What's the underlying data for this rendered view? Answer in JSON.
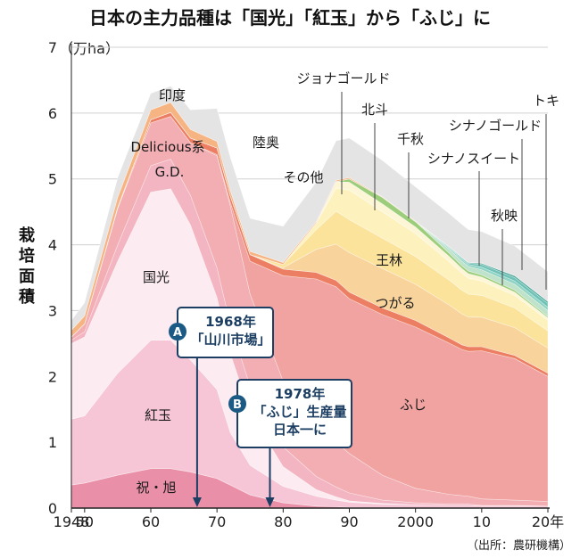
{
  "chart_data": {
    "type": "area",
    "title": "日本の主力品種は「国光」「紅玉」から「ふじ」に",
    "ylabel": "栽培面積",
    "yunit": "（万ha）",
    "source": "（出所：農研機構）",
    "ylim": [
      0,
      7
    ],
    "y_ticks": [
      0,
      1,
      2,
      3,
      4,
      5,
      6,
      7
    ],
    "x_ticks": [
      1948,
      1950,
      1960,
      1970,
      1980,
      1990,
      2000,
      2010,
      2020
    ],
    "x_tick_labels": [
      "1948",
      "50",
      "60",
      "70",
      "80",
      "90",
      "2000",
      "10",
      "20年"
    ],
    "x": [
      1948,
      1950,
      1955,
      1960,
      1963,
      1966,
      1970,
      1972,
      1975,
      1980,
      1985,
      1988,
      1990,
      1995,
      2000,
      2005,
      2007,
      2008,
      2010,
      2015,
      2020
    ],
    "series": [
      {
        "name": "祝・旭",
        "color": "#ea8fa8",
        "values": [
          0.35,
          0.38,
          0.5,
          0.6,
          0.6,
          0.55,
          0.45,
          0.35,
          0.2,
          0.08,
          0.03,
          0.02,
          0.01,
          0,
          0,
          0,
          0,
          0,
          0,
          0,
          0
        ]
      },
      {
        "name": "紅玉",
        "color": "#f6c6d6",
        "values": [
          1.0,
          1.02,
          1.55,
          1.95,
          1.95,
          1.7,
          1.35,
          0.8,
          0.45,
          0.25,
          0.15,
          0.1,
          0.08,
          0.06,
          0.05,
          0.04,
          0.04,
          0.04,
          0.03,
          0.03,
          0.03
        ]
      },
      {
        "name": "国光",
        "color": "#fcebf0",
        "values": [
          1.15,
          1.2,
          1.7,
          2.25,
          2.3,
          2.05,
          1.4,
          1.2,
          0.8,
          0.3,
          0.1,
          0.05,
          0.02,
          0.01,
          0,
          0,
          0,
          0,
          0,
          0,
          0
        ]
      },
      {
        "name": "G.D.",
        "color": "#f3b5c2",
        "values": [
          0.05,
          0.08,
          0.25,
          0.4,
          0.45,
          0.45,
          0.45,
          0.45,
          0.4,
          0.3,
          0.2,
          0.15,
          0.12,
          0.05,
          0.03,
          0.02,
          0.02,
          0.02,
          0.01,
          0.01,
          0
        ]
      },
      {
        "name": "Delicious系",
        "color": "#f2aeb2",
        "values": [
          0.05,
          0.12,
          0.55,
          0.65,
          0.65,
          0.8,
          1.7,
          1.8,
          1.4,
          1.0,
          0.8,
          0.68,
          0.6,
          0.38,
          0.22,
          0.15,
          0.13,
          0.12,
          0.1,
          0.08,
          0.07
        ]
      },
      {
        "name": "ふじ",
        "color": "#f0a3a0",
        "values": [
          0,
          0,
          0,
          0,
          0,
          0,
          0.02,
          0.05,
          0.5,
          1.6,
          2.2,
          2.36,
          2.35,
          2.44,
          2.45,
          2.3,
          2.22,
          2.2,
          2.25,
          2.15,
          1.9
        ]
      },
      {
        "name": "陸奥",
        "color": "#ec7f63",
        "values": [
          0,
          0,
          0.02,
          0.05,
          0.06,
          0.07,
          0.1,
          0.1,
          0.1,
          0.1,
          0.1,
          0.1,
          0.1,
          0.1,
          0.1,
          0.08,
          0.07,
          0.07,
          0.06,
          0.05,
          0.05
        ]
      },
      {
        "name": "つがる",
        "color": "#f8d39c",
        "values": [
          0,
          0,
          0,
          0,
          0,
          0,
          0,
          0,
          0,
          0.02,
          0.35,
          0.55,
          0.6,
          0.6,
          0.55,
          0.5,
          0.47,
          0.45,
          0.45,
          0.42,
          0.38
        ]
      },
      {
        "name": "王林",
        "color": "#fbe39b",
        "values": [
          0,
          0,
          0,
          0,
          0,
          0,
          0,
          0,
          0,
          0.05,
          0.3,
          0.5,
          0.5,
          0.46,
          0.42,
          0.38,
          0.36,
          0.35,
          0.33,
          0.3,
          0.26
        ]
      },
      {
        "name": "ジョナゴールド",
        "color": "#fdf2bd",
        "values": [
          0,
          0,
          0,
          0,
          0,
          0,
          0,
          0,
          0,
          0,
          0.1,
          0.35,
          0.45,
          0.4,
          0.35,
          0.28,
          0.26,
          0.24,
          0.22,
          0.19,
          0.16
        ]
      },
      {
        "name": "北斗",
        "color": "#fcf6d6",
        "values": [
          0,
          0,
          0,
          0,
          0,
          0,
          0,
          0,
          0,
          0,
          0,
          0.1,
          0.12,
          0.12,
          0.1,
          0.08,
          0.07,
          0.07,
          0.06,
          0.05,
          0.04
        ]
      },
      {
        "name": "千秋",
        "color": "#9ccd7a",
        "values": [
          0,
          0,
          0,
          0,
          0,
          0,
          0,
          0,
          0,
          0,
          0,
          0,
          0.05,
          0.1,
          0.08,
          0.05,
          0.04,
          0.04,
          0.03,
          0.03,
          0.02
        ]
      },
      {
        "name": "シナノスイート",
        "color": "#bfe3ca",
        "values": [
          0,
          0,
          0,
          0,
          0,
          0,
          0,
          0,
          0,
          0,
          0,
          0,
          0,
          0,
          0,
          0.06,
          0.07,
          0.07,
          0.08,
          0.09,
          0.09
        ]
      },
      {
        "name": "秋映",
        "color": "#8fd3c4",
        "values": [
          0,
          0,
          0,
          0,
          0,
          0,
          0,
          0,
          0,
          0,
          0,
          0,
          0,
          0,
          0,
          0.02,
          0.03,
          0.03,
          0.04,
          0.05,
          0.05
        ]
      },
      {
        "name": "シナノゴールド",
        "color": "#6ec2b6",
        "values": [
          0,
          0,
          0,
          0,
          0,
          0,
          0,
          0,
          0,
          0,
          0,
          0,
          0,
          0,
          0,
          0.01,
          0.02,
          0.02,
          0.04,
          0.05,
          0.06
        ]
      },
      {
        "name": "トキ",
        "color": "#4fa89a",
        "values": [
          0,
          0,
          0,
          0,
          0,
          0,
          0,
          0,
          0,
          0,
          0,
          0,
          0,
          0,
          0,
          0.01,
          0.01,
          0.01,
          0.02,
          0.03,
          0.03
        ]
      },
      {
        "name": "印度",
        "color": "#f6b483",
        "values": [
          0.1,
          0.12,
          0.15,
          0.15,
          0.15,
          0.13,
          0.1,
          0.08,
          0.05,
          0.03,
          0.02,
          0.02,
          0.02,
          0.01,
          0.01,
          0,
          0,
          0,
          0,
          0,
          0
        ]
      },
      {
        "name": "その他",
        "color": "#e4e4e4",
        "values": [
          0.15,
          0.2,
          0.3,
          0.25,
          0.25,
          0.3,
          0.5,
          0.5,
          0.5,
          0.55,
          0.6,
          0.6,
          0.6,
          0.55,
          0.52,
          0.5,
          0.5,
          0.5,
          0.48,
          0.45,
          0.45
        ]
      }
    ],
    "area_labels": [
      {
        "name": "印度",
        "text": "印度"
      },
      {
        "name": "Delicious系",
        "text": "Delicious系"
      },
      {
        "name": "G.D.",
        "text": "G.D."
      },
      {
        "name": "国光",
        "text": "国光"
      },
      {
        "name": "紅玉",
        "text": "紅玉"
      },
      {
        "name": "祝・旭",
        "text": "祝・旭"
      },
      {
        "name": "陸奥",
        "text": "陸奥"
      },
      {
        "name": "その他",
        "text": "その他"
      },
      {
        "name": "王林",
        "text": "王林"
      },
      {
        "name": "つがる",
        "text": "つがる"
      },
      {
        "name": "ふじ",
        "text": "ふじ"
      },
      {
        "name": "ジョナゴールド",
        "text": "ジョナゴールド"
      },
      {
        "name": "北斗",
        "text": "北斗"
      },
      {
        "name": "千秋",
        "text": "千秋"
      },
      {
        "name": "シナノスイート",
        "text": "シナノスイート"
      },
      {
        "name": "シナノゴールド",
        "text": "シナノゴールド"
      },
      {
        "name": "秋映",
        "text": "秋映"
      },
      {
        "name": "トキ",
        "text": "トキ"
      }
    ],
    "annotations": [
      {
        "badge": "A",
        "x": 1967,
        "lines": [
          "1968年",
          "「山川市場」"
        ]
      },
      {
        "badge": "B",
        "x": 1978,
        "lines": [
          "1978年",
          "「ふじ」生産量",
          "日本一に"
        ]
      }
    ],
    "colors": {
      "grid": "#d0d0d0",
      "axis": "#222222",
      "annotation": "#1c3e62",
      "badge": "#1c5a86"
    }
  }
}
